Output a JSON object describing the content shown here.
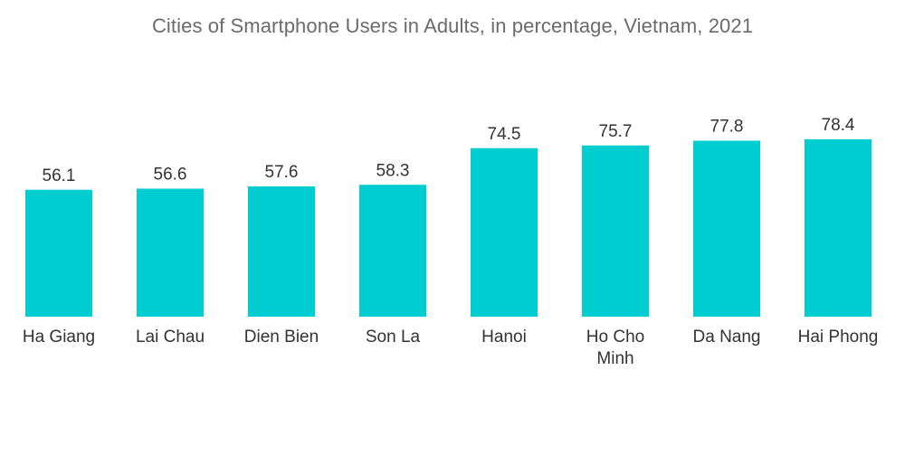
{
  "chart_data": {
    "type": "bar",
    "title": "Cities of Smartphone Users in Adults, in percentage, Vietnam, 2021",
    "categories": [
      "Ha Giang",
      "Lai Chau",
      "Dien Bien",
      "Son La",
      "Hanoi",
      "Ho Cho Minh",
      "Da Nang",
      "Hai Phong"
    ],
    "category_lines": [
      [
        "Ha Giang"
      ],
      [
        "Lai Chau"
      ],
      [
        "Dien Bien"
      ],
      [
        "Son La"
      ],
      [
        "Hanoi"
      ],
      [
        "Ho Cho",
        "Minh"
      ],
      [
        "Da Nang"
      ],
      [
        "Hai Phong"
      ]
    ],
    "values": [
      56.1,
      56.6,
      57.6,
      58.3,
      74.5,
      75.7,
      77.8,
      78.4
    ],
    "value_labels": [
      "56.1",
      "56.6",
      "57.6",
      "58.3",
      "74.5",
      "75.7",
      "77.8",
      "78.4"
    ],
    "xlabel": "",
    "ylabel": "",
    "ylim": [
      0,
      80
    ],
    "grid": false,
    "legend": "none",
    "bar_color": "#00CDD0"
  }
}
